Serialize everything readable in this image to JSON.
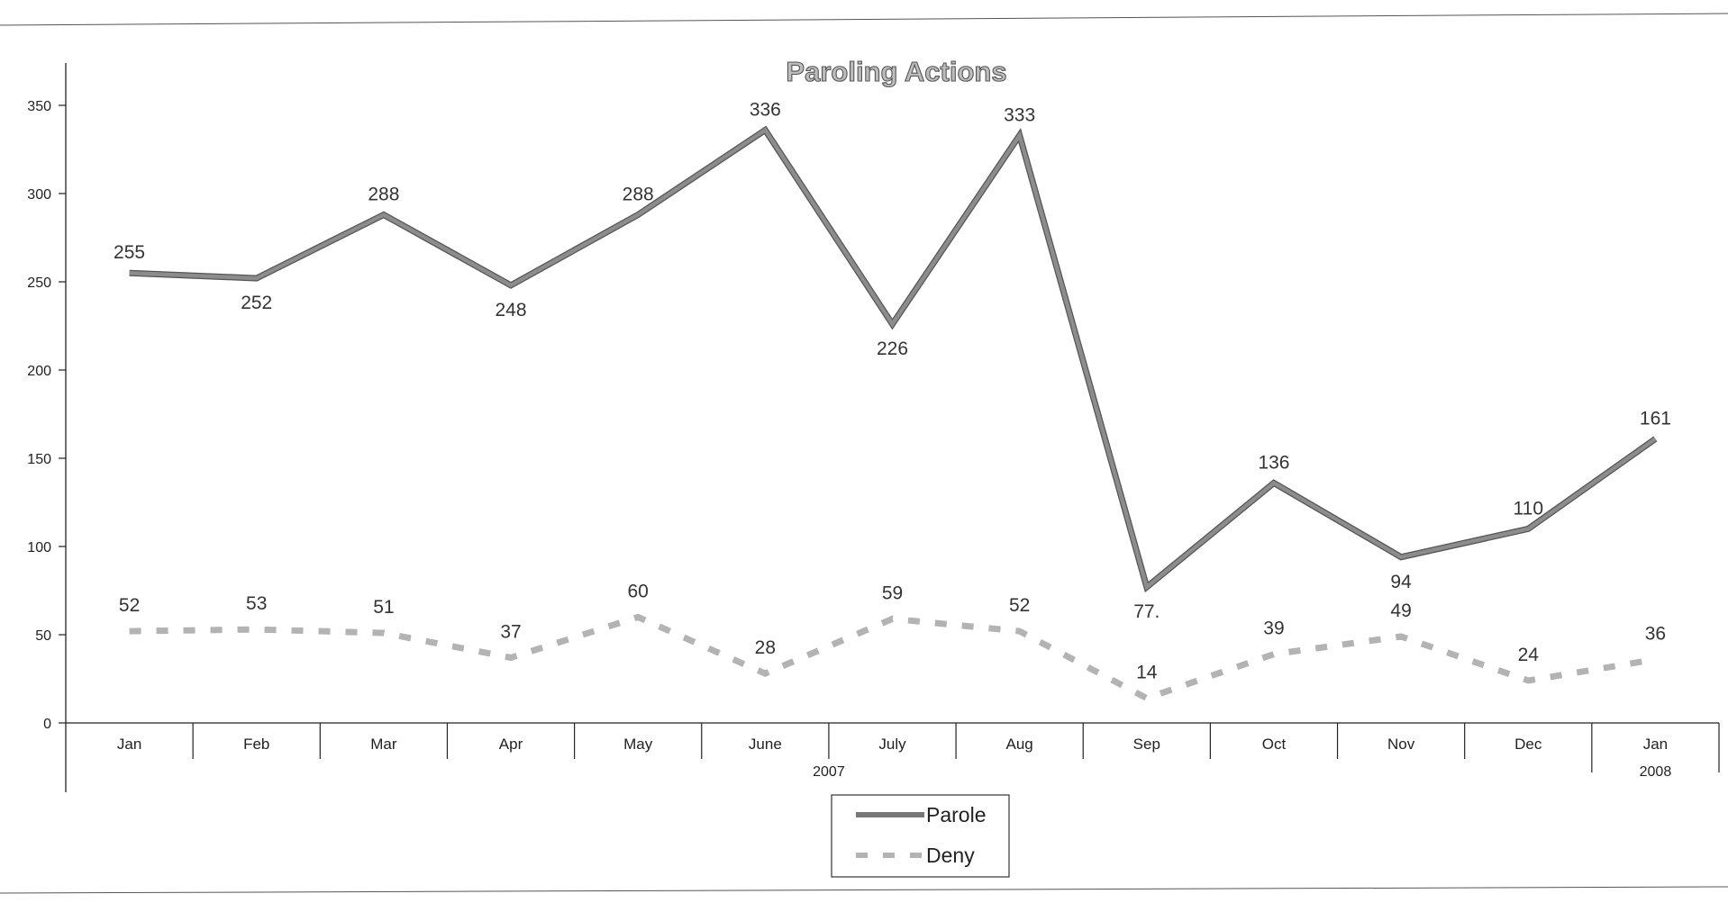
{
  "chart_data": {
    "type": "line",
    "title": "Paroling Actions",
    "xlabel": "",
    "ylabel": "",
    "categories": [
      "Jan",
      "Feb",
      "Mar",
      "Apr",
      "May",
      "June",
      "July",
      "Aug",
      "Sep",
      "Oct",
      "Nov",
      "Dec",
      "Jan"
    ],
    "year_groups": [
      {
        "label": "2007",
        "start": 0,
        "end": 11
      },
      {
        "label": "2008",
        "start": 12,
        "end": 12
      }
    ],
    "ylim": [
      0,
      350
    ],
    "yticks": [
      "0",
      "50",
      "100",
      "150",
      "200",
      "250",
      "300",
      "350"
    ],
    "series": [
      {
        "name": "Parole",
        "style": "solid",
        "color": "#8c8c8c",
        "values": [
          255,
          252,
          288,
          248,
          288,
          336,
          226,
          333,
          77,
          136,
          94,
          110,
          161
        ],
        "labels": [
          "255",
          "252",
          "288",
          "248",
          "288",
          "336",
          "226",
          "333",
          "77.",
          "136",
          "94",
          "110",
          "161"
        ]
      },
      {
        "name": "Deny",
        "style": "dashed",
        "color": "#b3b3b3",
        "values": [
          52,
          53,
          51,
          37,
          60,
          28,
          59,
          52,
          14,
          39,
          49,
          24,
          36
        ],
        "labels": [
          "52",
          "53",
          "51",
          "37",
          "60",
          "28",
          "59",
          "52",
          "14",
          "39",
          "49",
          "24",
          "36"
        ]
      }
    ],
    "grid": false,
    "legend": "bottom-center"
  }
}
